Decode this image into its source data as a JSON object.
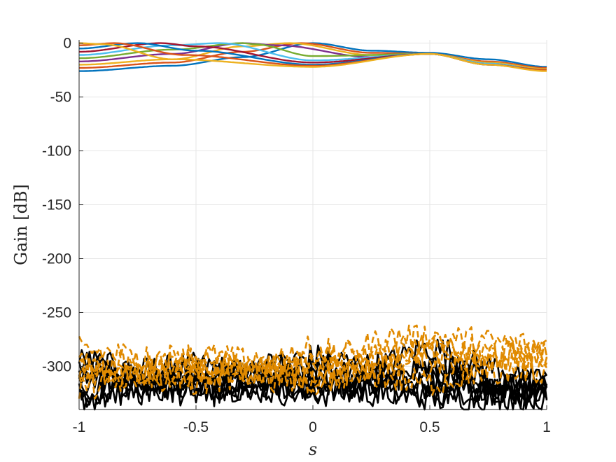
{
  "chart_data": {
    "type": "line",
    "title": "",
    "xlabel": "s",
    "ylabel": "Gain [dB]",
    "xlim": [
      -1,
      1
    ],
    "ylim": [
      -340,
      3
    ],
    "xticks": [
      -1,
      -0.5,
      0,
      0.5,
      1
    ],
    "xtick_labels": [
      "-1",
      "-0.5",
      "0",
      "0.5",
      "1"
    ],
    "yticks": [
      0,
      -50,
      -100,
      -150,
      -200,
      -250,
      -300
    ],
    "ytick_labels": [
      "0",
      "-50",
      "-100",
      "-150",
      "-200",
      "-250",
      "-300"
    ],
    "grid": true,
    "legend": "none",
    "colors": {
      "palette": [
        "#0072BD",
        "#D95319",
        "#EDB120",
        "#7E2F8E",
        "#77AC30",
        "#4DBEEE",
        "#A2142F"
      ],
      "noise_solid": "#000000",
      "noise_dashed": "#E08A00",
      "grid": "#e6e6e6",
      "axis": "#262626"
    },
    "beam_series": [
      {
        "color": "#0072BD",
        "x": [
          -1,
          -0.6,
          -0.3,
          0,
          0.25,
          0.5,
          0.75,
          1
        ],
        "y": [
          -26,
          -21,
          -13,
          0,
          -7,
          -9,
          -15,
          -22
        ]
      },
      {
        "color": "#D95319",
        "x": [
          -1,
          -0.6,
          -0.3,
          -0.05,
          0.25,
          0.5,
          0.75,
          1
        ],
        "y": [
          -23,
          -18,
          -8,
          0,
          -9,
          -10,
          -17,
          -23
        ]
      },
      {
        "color": "#EDB120",
        "x": [
          -1,
          -0.6,
          -0.3,
          -0.1,
          0.25,
          0.5,
          0.75,
          1
        ],
        "y": [
          -20,
          -15,
          -3,
          0,
          -11,
          -10,
          -18,
          -24
        ]
      },
      {
        "color": "#7E2F8E",
        "x": [
          -1,
          -0.6,
          -0.3,
          -0.15,
          0.25,
          0.5,
          0.75,
          1
        ],
        "y": [
          -17,
          -10,
          0,
          -2,
          -13,
          -10,
          -19,
          -25
        ]
      },
      {
        "color": "#77AC30",
        "x": [
          -1,
          -0.6,
          -0.3,
          -0.25,
          0,
          0.5,
          0.75,
          1
        ],
        "y": [
          -14,
          -6,
          0,
          -1,
          -12,
          -10,
          -19,
          -25
        ]
      },
      {
        "color": "#4DBEEE",
        "x": [
          -1,
          -0.6,
          -0.4,
          0,
          0.5,
          0.75,
          1
        ],
        "y": [
          -11,
          -2,
          0,
          -16,
          -10,
          -19,
          -25
        ]
      },
      {
        "color": "#A2142F",
        "x": [
          -1,
          -0.65,
          -0.5,
          0,
          0.5,
          0.75,
          1
        ],
        "y": [
          -8,
          0,
          -3,
          -18,
          -10,
          -20,
          -25
        ]
      },
      {
        "color": "#0072BD",
        "x": [
          -1,
          -0.75,
          -0.5,
          0,
          0.5,
          0.75,
          1
        ],
        "y": [
          -5,
          0,
          -7,
          -20,
          -10,
          -20,
          -25
        ]
      },
      {
        "color": "#D95319",
        "x": [
          -1,
          -0.85,
          -0.55,
          0,
          0.5,
          0.75,
          1
        ],
        "y": [
          -2,
          0,
          -11,
          -21,
          -10,
          -20,
          -25
        ]
      },
      {
        "color": "#EDB120",
        "x": [
          -1,
          -0.9,
          -0.6,
          0,
          0.5,
          0.75,
          1
        ],
        "y": [
          0,
          -1,
          -15,
          -22,
          -10,
          -20,
          -26
        ]
      }
    ],
    "noise_series": [
      {
        "style": "solid",
        "x": [
          -1,
          -0.5,
          0,
          0.5,
          1
        ],
        "y": [
          -300,
          -315,
          -310,
          -320,
          -325
        ]
      },
      {
        "style": "solid",
        "x": [
          -1,
          -0.5,
          0,
          0.5,
          1
        ],
        "y": [
          -310,
          -300,
          -320,
          -315,
          -330
        ]
      },
      {
        "style": "solid",
        "x": [
          -1,
          -0.5,
          0,
          0.5,
          1
        ],
        "y": [
          -320,
          -310,
          -300,
          -312,
          -318
        ]
      },
      {
        "style": "solid",
        "x": [
          -1,
          -0.5,
          0,
          0.5,
          1
        ],
        "y": [
          -295,
          -325,
          -315,
          -300,
          -322
        ]
      },
      {
        "style": "solid",
        "x": [
          -1,
          -0.5,
          0,
          0.5,
          1
        ],
        "y": [
          -305,
          -318,
          -325,
          -325,
          -315
        ]
      },
      {
        "style": "solid",
        "x": [
          -1,
          -0.5,
          0,
          0.25,
          0.5,
          0.75,
          1
        ],
        "y": [
          -330,
          -315,
          -292,
          -300,
          -283,
          -300,
          -320
        ]
      },
      {
        "style": "solid",
        "x": [
          -1,
          -0.5,
          0,
          0.5,
          1
        ],
        "y": [
          -315,
          -305,
          -312,
          -330,
          -327
        ]
      },
      {
        "style": "solid",
        "x": [
          -1,
          -0.5,
          0,
          0.5,
          1
        ],
        "y": [
          -325,
          -322,
          -318,
          -308,
          -318
        ]
      },
      {
        "style": "dashed",
        "x": [
          -1,
          -0.5,
          0,
          0.5,
          1
        ],
        "y": [
          -285,
          -300,
          -315,
          -285,
          -290
        ]
      },
      {
        "style": "dashed",
        "x": [
          -1,
          -0.5,
          0,
          0.5,
          1
        ],
        "y": [
          -300,
          -290,
          -305,
          -280,
          -300
        ]
      },
      {
        "style": "dashed",
        "x": [
          -1,
          -0.5,
          0,
          0.4,
          1
        ],
        "y": [
          -310,
          -305,
          -295,
          -272,
          -280
        ]
      },
      {
        "style": "dashed",
        "x": [
          -1,
          -0.5,
          0,
          0.5,
          1
        ],
        "y": [
          -295,
          -315,
          -285,
          -300,
          -305
        ]
      },
      {
        "style": "dashed",
        "x": [
          -1,
          -0.5,
          0,
          0.5,
          1
        ],
        "y": [
          -320,
          -295,
          -310,
          -295,
          -290
        ]
      },
      {
        "style": "dashed",
        "x": [
          -1,
          -0.5,
          0,
          0.5,
          1
        ],
        "y": [
          -305,
          -310,
          -300,
          -315,
          -285
        ]
      }
    ]
  }
}
